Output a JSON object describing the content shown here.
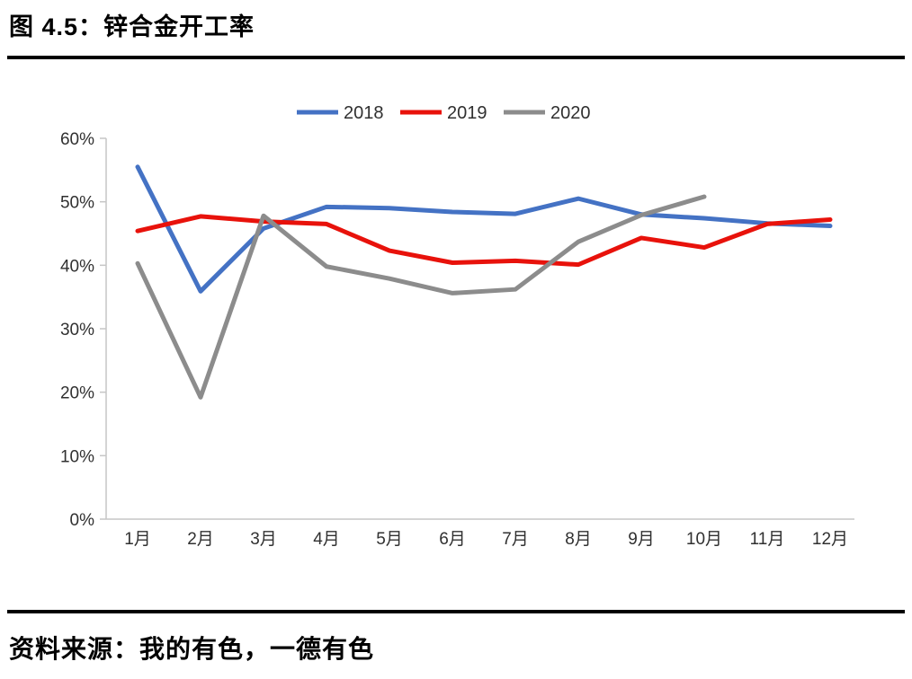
{
  "page": {
    "title": "图 4.5：锌合金开工率",
    "source": "资料来源：我的有色，一德有色"
  },
  "chart_data": {
    "type": "line",
    "title": "图 4.5：锌合金开工率",
    "xlabel": "",
    "ylabel": "",
    "categories": [
      "1月",
      "2月",
      "3月",
      "4月",
      "5月",
      "6月",
      "7月",
      "8月",
      "9月",
      "10月",
      "11月",
      "12月"
    ],
    "series": [
      {
        "name": "2018",
        "color": "#4472C4",
        "values": [
          55.5,
          35.9,
          45.8,
          49.2,
          49.0,
          48.4,
          48.1,
          50.5,
          48.0,
          47.4,
          46.6,
          46.2
        ]
      },
      {
        "name": "2019",
        "color": "#E8120B",
        "values": [
          45.4,
          47.7,
          46.9,
          46.5,
          42.3,
          40.4,
          40.7,
          40.1,
          44.3,
          42.8,
          46.5,
          47.2
        ]
      },
      {
        "name": "2020",
        "color": "#8C8C8C",
        "values": [
          40.3,
          19.2,
          47.8,
          39.8,
          37.9,
          35.6,
          36.2,
          43.7,
          47.9,
          50.8,
          null,
          null
        ]
      }
    ],
    "y_ticks": [
      "0%",
      "10%",
      "20%",
      "30%",
      "40%",
      "50%",
      "60%"
    ],
    "ylim": [
      0,
      60
    ],
    "grid": false,
    "legend_position": "top-center",
    "colors": {
      "axis_line": "#C6C6C6",
      "tick_text": "#303030",
      "legend_text": "#303030"
    }
  }
}
